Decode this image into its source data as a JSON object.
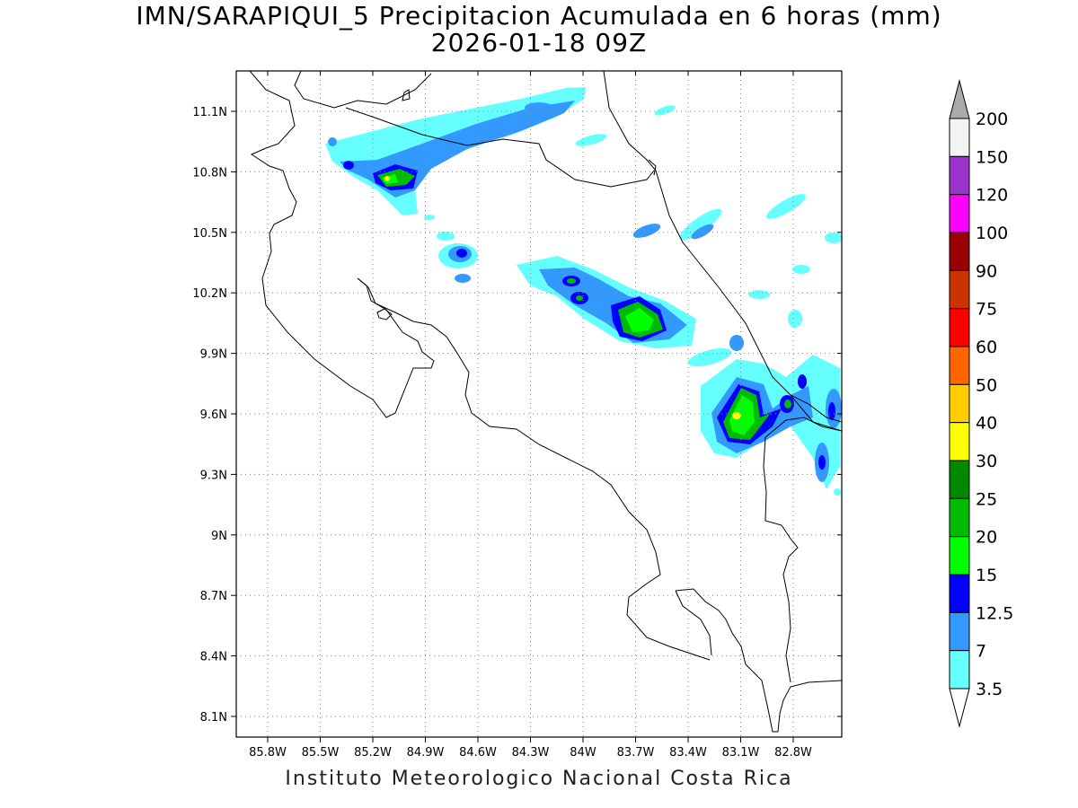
{
  "title": {
    "line1": "IMN/SARAPIQUI_5 Precipitacion Acumulada en 6 horas (mm)",
    "line2": "2026-01-18 09Z"
  },
  "credit": "Instituto Meteorologico Nacional Costa Rica",
  "map": {
    "lon_range": [
      -86.0,
      -82.6
    ],
    "lat_range": [
      8.0,
      11.3
    ],
    "lon_ticks": [
      "85.8W",
      "85.5W",
      "85.2W",
      "84.9W",
      "84.6W",
      "84.3W",
      "84W",
      "83.7W",
      "83.4W",
      "83.1W",
      "82.8W"
    ],
    "lat_ticks": [
      "11.1N",
      "10.8N",
      "10.5N",
      "10.2N",
      "9.9N",
      "9.6N",
      "9.3N",
      "9N",
      "8.7N",
      "8.4N",
      "8.1N"
    ],
    "grid": "dotted"
  },
  "colorbar": {
    "levels": [
      "200",
      "150",
      "120",
      "100",
      "90",
      "75",
      "60",
      "50",
      "40",
      "30",
      "25",
      "20",
      "15",
      "12.5",
      "7",
      "3.5"
    ],
    "colors": [
      "#f4f4f4",
      "#9933cc",
      "#ff00ff",
      "#990000",
      "#cc3300",
      "#ff0000",
      "#ff6600",
      "#ffcc00",
      "#ffff00",
      "#008800",
      "#00bb00",
      "#00ff00",
      "#0000ff",
      "#3399ff",
      "#66ffff"
    ],
    "over_color": "#aaaaaa",
    "under_color": "#ffffff"
  }
}
